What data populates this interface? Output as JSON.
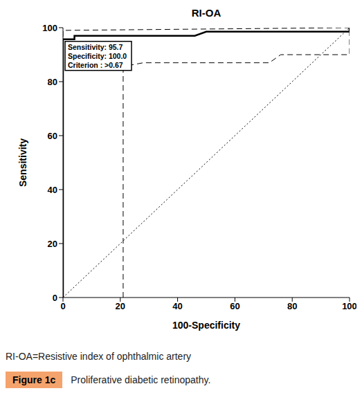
{
  "chart_data": {
    "type": "line",
    "title": "RI-OA",
    "x_label": "100-Specificity",
    "y_label": "Sensitivity",
    "xlim": [
      0,
      100
    ],
    "ylim": [
      0,
      100
    ],
    "xticks": [
      0,
      20,
      40,
      60,
      80,
      100
    ],
    "yticks": [
      0,
      20,
      40,
      60,
      80,
      100
    ],
    "grid": false,
    "series": [
      {
        "x": [
          0,
          0,
          4,
          4,
          46,
          50,
          100,
          100
        ],
        "values": [
          0,
          95.7,
          95.7,
          97,
          97,
          98.5,
          98.5,
          100
        ],
        "color": "#000000",
        "line_style": "solid"
      },
      {
        "x": [
          21,
          21,
          23,
          28,
          72,
          76,
          100,
          100
        ],
        "values": [
          0,
          84,
          86,
          87,
          87,
          90,
          90,
          100
        ],
        "color": "#000000",
        "line_style": "dashed"
      },
      {
        "x": [
          0,
          0,
          100
        ],
        "values": [
          0,
          99,
          100
        ],
        "color": "#000000",
        "line_style": "dashed"
      },
      {
        "x": [
          0,
          100
        ],
        "values": [
          0,
          100
        ],
        "color": "#000000",
        "line_style": "dotted"
      }
    ],
    "annotations": [
      "Sensitivity: 95.7",
      "Specificity: 100.0",
      "Criterion : >0.67"
    ]
  },
  "caption": {
    "note": "RI-OA=Resistive index of ophthalmic artery",
    "figure_label": "Figure 1c",
    "figure_title": "Proliferative diabetic retinopathy."
  }
}
